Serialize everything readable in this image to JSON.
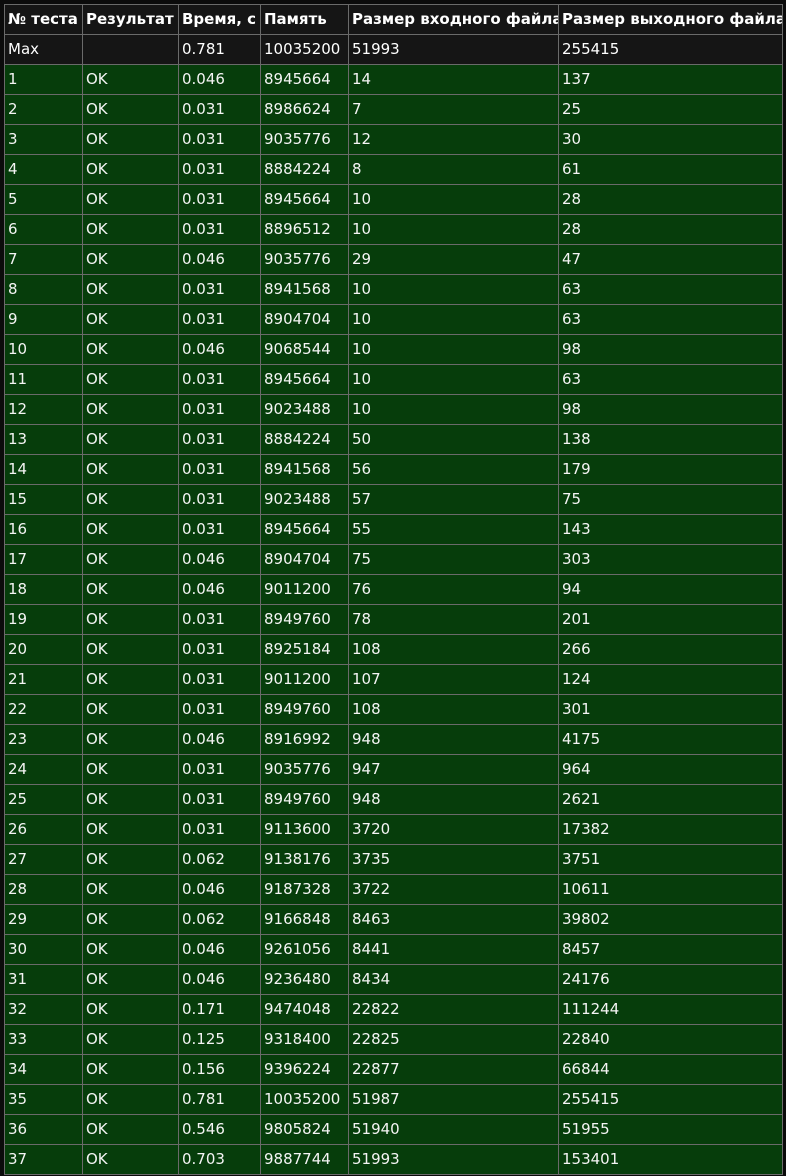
{
  "colors": {
    "header_bg": "#151515",
    "ok_row_bg": "#063d0b",
    "border": "#6a6a6a",
    "text": "#f2f2f2"
  },
  "headers": [
    "№ теста",
    "Результат",
    "Время, с",
    "Память",
    "Размер входного файла",
    "Размер выходного файла"
  ],
  "max_row": [
    "Max",
    "",
    "0.781",
    "10035200",
    "51993",
    "255415"
  ],
  "rows": [
    [
      "1",
      "OK",
      "0.046",
      "8945664",
      "14",
      "137"
    ],
    [
      "2",
      "OK",
      "0.031",
      "8986624",
      "7",
      "25"
    ],
    [
      "3",
      "OK",
      "0.031",
      "9035776",
      "12",
      "30"
    ],
    [
      "4",
      "OK",
      "0.031",
      "8884224",
      "8",
      "61"
    ],
    [
      "5",
      "OK",
      "0.031",
      "8945664",
      "10",
      "28"
    ],
    [
      "6",
      "OK",
      "0.031",
      "8896512",
      "10",
      "28"
    ],
    [
      "7",
      "OK",
      "0.046",
      "9035776",
      "29",
      "47"
    ],
    [
      "8",
      "OK",
      "0.031",
      "8941568",
      "10",
      "63"
    ],
    [
      "9",
      "OK",
      "0.031",
      "8904704",
      "10",
      "63"
    ],
    [
      "10",
      "OK",
      "0.046",
      "9068544",
      "10",
      "98"
    ],
    [
      "11",
      "OK",
      "0.031",
      "8945664",
      "10",
      "63"
    ],
    [
      "12",
      "OK",
      "0.031",
      "9023488",
      "10",
      "98"
    ],
    [
      "13",
      "OK",
      "0.031",
      "8884224",
      "50",
      "138"
    ],
    [
      "14",
      "OK",
      "0.031",
      "8941568",
      "56",
      "179"
    ],
    [
      "15",
      "OK",
      "0.031",
      "9023488",
      "57",
      "75"
    ],
    [
      "16",
      "OK",
      "0.031",
      "8945664",
      "55",
      "143"
    ],
    [
      "17",
      "OK",
      "0.046",
      "8904704",
      "75",
      "303"
    ],
    [
      "18",
      "OK",
      "0.046",
      "9011200",
      "76",
      "94"
    ],
    [
      "19",
      "OK",
      "0.031",
      "8949760",
      "78",
      "201"
    ],
    [
      "20",
      "OK",
      "0.031",
      "8925184",
      "108",
      "266"
    ],
    [
      "21",
      "OK",
      "0.031",
      "9011200",
      "107",
      "124"
    ],
    [
      "22",
      "OK",
      "0.031",
      "8949760",
      "108",
      "301"
    ],
    [
      "23",
      "OK",
      "0.046",
      "8916992",
      "948",
      "4175"
    ],
    [
      "24",
      "OK",
      "0.031",
      "9035776",
      "947",
      "964"
    ],
    [
      "25",
      "OK",
      "0.031",
      "8949760",
      "948",
      "2621"
    ],
    [
      "26",
      "OK",
      "0.031",
      "9113600",
      "3720",
      "17382"
    ],
    [
      "27",
      "OK",
      "0.062",
      "9138176",
      "3735",
      "3751"
    ],
    [
      "28",
      "OK",
      "0.046",
      "9187328",
      "3722",
      "10611"
    ],
    [
      "29",
      "OK",
      "0.062",
      "9166848",
      "8463",
      "39802"
    ],
    [
      "30",
      "OK",
      "0.046",
      "9261056",
      "8441",
      "8457"
    ],
    [
      "31",
      "OK",
      "0.046",
      "9236480",
      "8434",
      "24176"
    ],
    [
      "32",
      "OK",
      "0.171",
      "9474048",
      "22822",
      "111244"
    ],
    [
      "33",
      "OK",
      "0.125",
      "9318400",
      "22825",
      "22840"
    ],
    [
      "34",
      "OK",
      "0.156",
      "9396224",
      "22877",
      "66844"
    ],
    [
      "35",
      "OK",
      "0.781",
      "10035200",
      "51987",
      "255415"
    ],
    [
      "36",
      "OK",
      "0.546",
      "9805824",
      "51940",
      "51955"
    ],
    [
      "37",
      "OK",
      "0.703",
      "9887744",
      "51993",
      "153401"
    ]
  ]
}
